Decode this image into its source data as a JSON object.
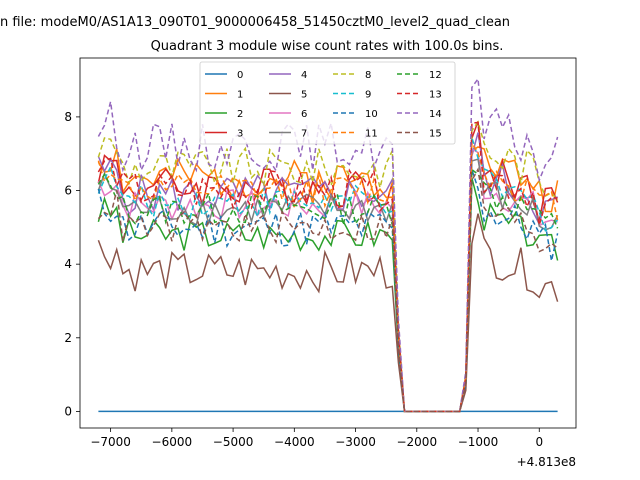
{
  "chart_data": {
    "type": "line",
    "suptitle": "n file: modeM0/AS1A13_090T01_9000006458_51450cztM0_level2_quad_clean",
    "title": "Quadrant 3 module wise count rates with 100.0s bins.",
    "xlabel": "",
    "ylabel": "",
    "x_offset_label": "+4.813e8",
    "xlim": [
      -7500,
      600
    ],
    "ylim": [
      -0.45,
      9.6
    ],
    "xticks": [
      -7000,
      -6000,
      -5000,
      -4000,
      -3000,
      -2000,
      -1000,
      0
    ],
    "xtick_labels": [
      "−7000",
      "−6000",
      "−5000",
      "−4000",
      "−3000",
      "−2000",
      "−1000",
      "0"
    ],
    "yticks": [
      0,
      2,
      4,
      6,
      8
    ],
    "ytick_labels": [
      "0",
      "2",
      "4",
      "6",
      "8"
    ],
    "grid": false,
    "legend_placement": "top-center",
    "legend_columns": 4,
    "gap": {
      "start": -2200,
      "end": -1300
    },
    "series": [
      {
        "name": "0",
        "color": "#1f77b4",
        "style": "solid",
        "level": 0,
        "amp": 0,
        "seed": 1
      },
      {
        "name": "1",
        "color": "#ff7f0e",
        "style": "solid",
        "level": 6.3,
        "amp": 0.25,
        "seed": 2
      },
      {
        "name": "2",
        "color": "#2ca02c",
        "style": "solid",
        "level": 4.8,
        "amp": 0.2,
        "seed": 3
      },
      {
        "name": "3",
        "color": "#d62728",
        "style": "solid",
        "level": 6.1,
        "amp": 0.25,
        "seed": 4
      },
      {
        "name": "4",
        "color": "#9467bd",
        "style": "solid",
        "level": 5.9,
        "amp": 0.25,
        "seed": 5
      },
      {
        "name": "5",
        "color": "#8c564b",
        "style": "solid",
        "level": 3.8,
        "amp": 0.25,
        "seed": 6
      },
      {
        "name": "6",
        "color": "#e377c2",
        "style": "solid",
        "level": 5.6,
        "amp": 0.2,
        "seed": 7
      },
      {
        "name": "7",
        "color": "#7f7f7f",
        "style": "solid",
        "level": 5.5,
        "amp": 0.2,
        "seed": 8
      },
      {
        "name": "8",
        "color": "#bcbd22",
        "style": "dashed",
        "level": 6.6,
        "amp": 0.25,
        "seed": 9
      },
      {
        "name": "9",
        "color": "#17becf",
        "style": "dashed",
        "level": 5.7,
        "amp": 0.2,
        "seed": 10
      },
      {
        "name": "10",
        "color": "#1f77b4",
        "style": "dashed",
        "level": 5.0,
        "amp": 0.25,
        "seed": 11
      },
      {
        "name": "11",
        "color": "#ff7f0e",
        "style": "dashed",
        "level": 6.0,
        "amp": 0.2,
        "seed": 12
      },
      {
        "name": "12",
        "color": "#2ca02c",
        "style": "dashed",
        "level": 5.5,
        "amp": 0.2,
        "seed": 13
      },
      {
        "name": "13",
        "color": "#d62728",
        "style": "dashed",
        "level": 6.0,
        "amp": 0.25,
        "seed": 14
      },
      {
        "name": "14",
        "color": "#9467bd",
        "style": "dashed",
        "level": 7.2,
        "amp": 0.3,
        "seed": 15
      },
      {
        "name": "15",
        "color": "#8c564b",
        "style": "dashed",
        "level": 5.0,
        "amp": 0.2,
        "seed": 16
      }
    ]
  }
}
